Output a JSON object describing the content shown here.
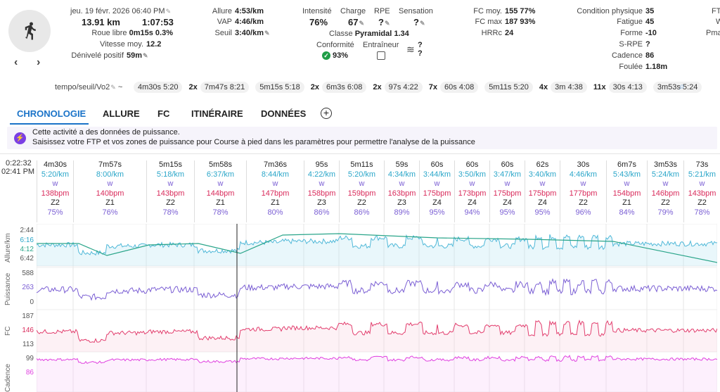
{
  "header": {
    "date": "jeu. 19 févr. 2026",
    "time": "06:40 PM",
    "distance": "13.91 km",
    "duration": "1:07:53",
    "roue_libre_label": "Roue libre",
    "roue_libre_value": "0m15s",
    "roue_libre_pct": "0.3%",
    "vitesse_label": "Vitesse moy.",
    "vitesse_value": "12.2",
    "denivele_label": "Dénivelé positif",
    "denivele_value": "59m",
    "allure_label": "Allure",
    "allure_value": "4:53/km",
    "vap_label": "VAP",
    "vap_value": "4:46/km",
    "seuil_label": "Seuil",
    "seuil_value": "3:40/km",
    "intensite_label": "Intensité",
    "intensite_value": "76%",
    "charge_label": "Charge",
    "charge_value": "67",
    "rpe_label": "RPE",
    "rpe_value": "?",
    "sensation_label": "Sensation",
    "sensation_value": "?",
    "classe_label": "Classe",
    "classe_value": "Pyramidal",
    "classe_num": "1.34",
    "conformite_label": "Conformité",
    "conformite_value": "93%",
    "entraineur_label": "Entraîneur",
    "weather_q1": "?",
    "weather_q2": "?",
    "fcmoy_label": "FC moy.",
    "fcmoy_value": "155",
    "fcmoy_pct": "77%",
    "fcmax_label": "FC max",
    "fcmax_value": "187",
    "fcmax_pct": "93%",
    "hrrc_label": "HRRc",
    "hrrc_value": "24",
    "cond_label": "Condition physique",
    "cond_value": "35",
    "fatigue_label": "Fatigue",
    "fatigue_value": "45",
    "forme_label": "Forme",
    "forme_value": "-10",
    "srpe_label": "S-RPE",
    "srpe_value": "?",
    "cadence_label": "Cadence",
    "cadence_value": "86",
    "foulee_label": "Foulée",
    "foulee_value": "1.18m",
    "cut_ft": "FT",
    "cut_w": "W",
    "cut_pm": "Pma"
  },
  "workout": {
    "name": "tempo/seuil/Vo2",
    "tilde": "~",
    "chips": [
      {
        "mult": "",
        "a": "4m30s",
        "b": "5:20"
      },
      {
        "mult": "2x",
        "a": "7m47s",
        "b": "8:21"
      },
      {
        "mult": "",
        "a": "5m15s",
        "b": "5:18"
      },
      {
        "mult": "2x",
        "a": "6m3s",
        "b": "6:08"
      },
      {
        "mult": "2x",
        "a": "97s",
        "b": "4:22"
      },
      {
        "mult": "7x",
        "a": "60s",
        "b": "4:08"
      },
      {
        "mult": "",
        "a": "5m11s",
        "b": "5:20"
      },
      {
        "mult": "4x",
        "a": "3m",
        "b": "4:38"
      },
      {
        "mult": "11x",
        "a": "30s",
        "b": "4:13"
      },
      {
        "mult": "",
        "a": "3m53s",
        "b": "5:24"
      }
    ]
  },
  "tabs": [
    "CHRONOLOGIE",
    "ALLURE",
    "FC",
    "ITINÉRAIRE",
    "DONNÉES"
  ],
  "banner": {
    "line1": "Cette activité a des données de puissance.",
    "line2": "Saisissez votre FTP et vos zones de puissance pour Course à pied dans les paramètres pour permettre l'analyse de la puissance"
  },
  "cursor": {
    "time": "0:22:32",
    "clock": "02:41 PM"
  },
  "laps": [
    {
      "t": "4m30s",
      "p": "5:20/km",
      "w": "w",
      "h": "138bpm",
      "z": "Z2",
      "e": "75%"
    },
    {
      "t": "7m57s",
      "p": "8:00/km",
      "w": "w",
      "h": "140bpm",
      "z": "Z1",
      "e": "76%"
    },
    {
      "t": "5m15s",
      "p": "5:18/km",
      "w": "w",
      "h": "143bpm",
      "z": "Z2",
      "e": "78%"
    },
    {
      "t": "5m58s",
      "p": "6:37/km",
      "w": "w",
      "h": "144bpm",
      "z": "Z1",
      "e": "78%"
    },
    {
      "t": "7m36s",
      "p": "8:44/km",
      "w": "w",
      "h": "147bpm",
      "z": "Z1",
      "e": "80%"
    },
    {
      "t": "95s",
      "p": "4:22/km",
      "w": "w",
      "h": "158bpm",
      "z": "Z3",
      "e": "86%"
    },
    {
      "t": "5m11s",
      "p": "5:20/km",
      "w": "w",
      "h": "159bpm",
      "z": "Z2",
      "e": "86%"
    },
    {
      "t": "59s",
      "p": "4:34/km",
      "w": "w",
      "h": "163bpm",
      "z": "Z3",
      "e": "89%"
    },
    {
      "t": "60s",
      "p": "3:44/km",
      "w": "w",
      "h": "175bpm",
      "z": "Z4",
      "e": "95%"
    },
    {
      "t": "60s",
      "p": "3:50/km",
      "w": "w",
      "h": "173bpm",
      "z": "Z4",
      "e": "94%"
    },
    {
      "t": "60s",
      "p": "3:47/km",
      "w": "w",
      "h": "175bpm",
      "z": "Z4",
      "e": "95%"
    },
    {
      "t": "62s",
      "p": "3:40/km",
      "w": "w",
      "h": "175bpm",
      "z": "Z4",
      "e": "95%"
    },
    {
      "t": "30s",
      "p": "4:46/km",
      "w": "w",
      "h": "177bpm",
      "z": "Z2",
      "e": "96%"
    },
    {
      "t": "6m7s",
      "p": "5:43/km",
      "w": "w",
      "h": "154bpm",
      "z": "Z1",
      "e": "84%"
    },
    {
      "t": "3m53s",
      "p": "5:24/km",
      "w": "w",
      "h": "146bpm",
      "z": "Z2",
      "e": "79%"
    },
    {
      "t": "73s",
      "p": "5:21/km",
      "w": "w",
      "h": "143bpm",
      "z": "Z2",
      "e": "78%"
    }
  ],
  "charts": {
    "allure": {
      "label": "Allure/km",
      "ticks": [
        "2:44",
        "6:16",
        "4:12",
        "6:42"
      ]
    },
    "puissance": {
      "label": "Puissance",
      "ticks": [
        "588",
        "263",
        "0"
      ]
    },
    "fc": {
      "label": "FC",
      "ticks": [
        "187",
        "146",
        "113"
      ]
    },
    "cadence": {
      "label": "Cadence",
      "ticks": [
        "99",
        "86"
      ]
    }
  },
  "colors": {
    "accent": "#1a73c8",
    "pace": "#4fb8d8",
    "pace_target": "#2aa58a",
    "power": "#7b5fd4",
    "hr": "#e23d6d",
    "cadence": "#e040e0"
  }
}
